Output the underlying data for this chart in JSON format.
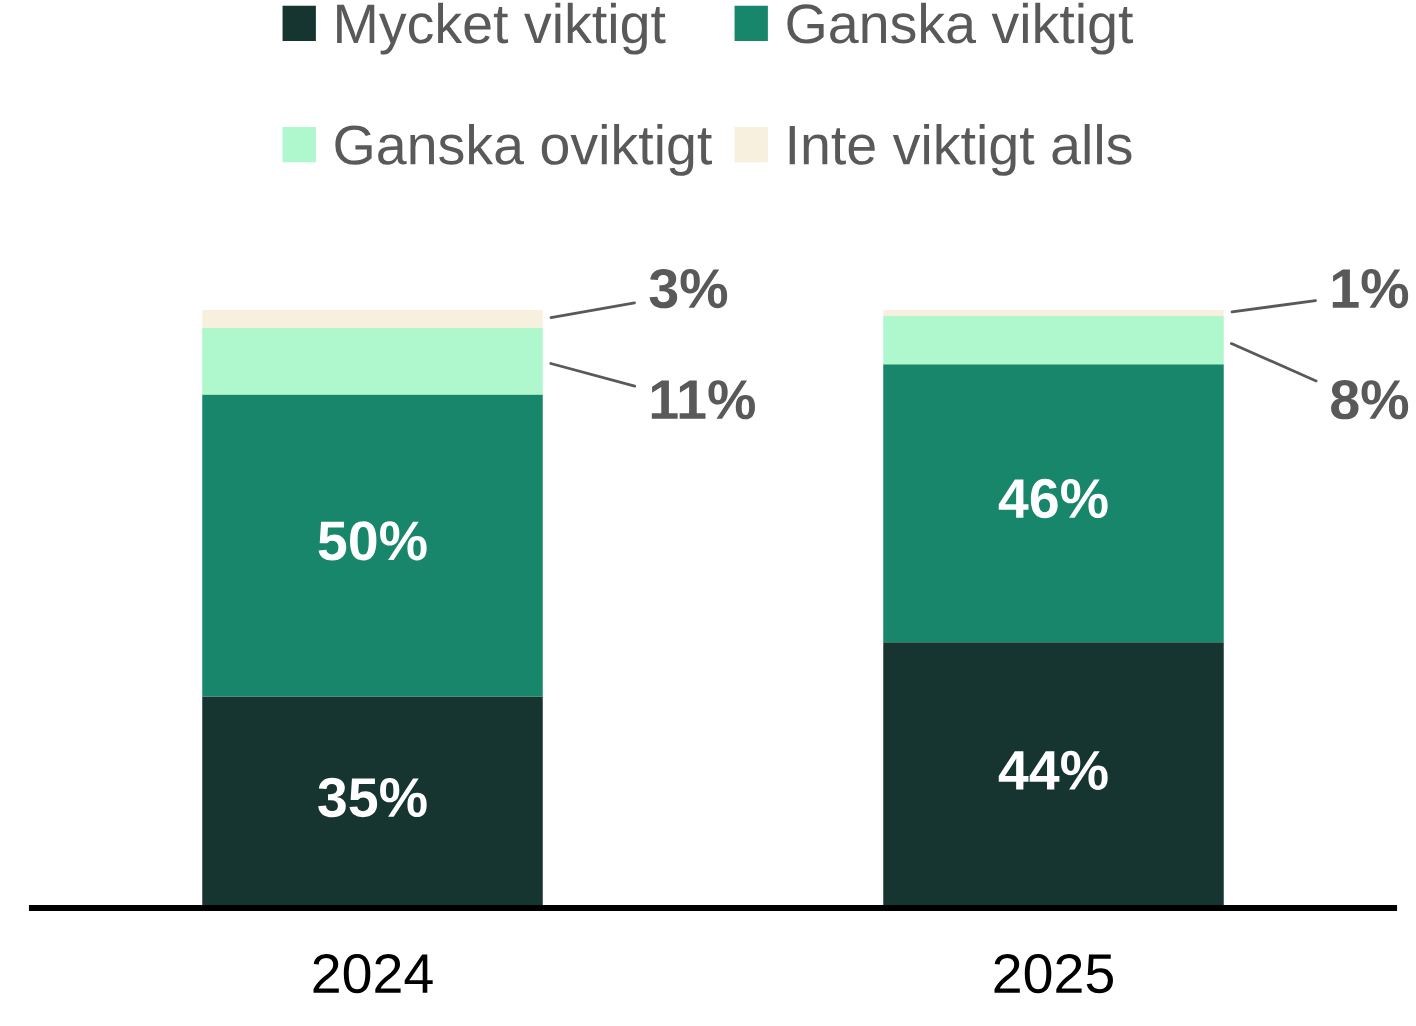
{
  "chart_data": {
    "type": "bar",
    "stacked": true,
    "legend": "top",
    "categories": [
      "2024",
      "2025"
    ],
    "series": [
      {
        "name": "Mycket viktigt",
        "color": "#163530",
        "values": [
          35,
          44
        ],
        "value_labels": [
          "35%",
          "44%"
        ]
      },
      {
        "name": "Ganska viktigt",
        "color": "#17866a",
        "values": [
          50,
          46
        ],
        "value_labels": [
          "50%",
          "46%"
        ]
      },
      {
        "name": "Ganska oviktigt",
        "color": "#aff7cd",
        "values": [
          11,
          8
        ],
        "value_labels": [
          "11%",
          "8%"
        ]
      },
      {
        "name": "Inte viktigt alls",
        "color": "#f7f0de",
        "values": [
          3,
          1
        ],
        "value_labels": [
          "3%",
          "1%"
        ]
      }
    ]
  }
}
